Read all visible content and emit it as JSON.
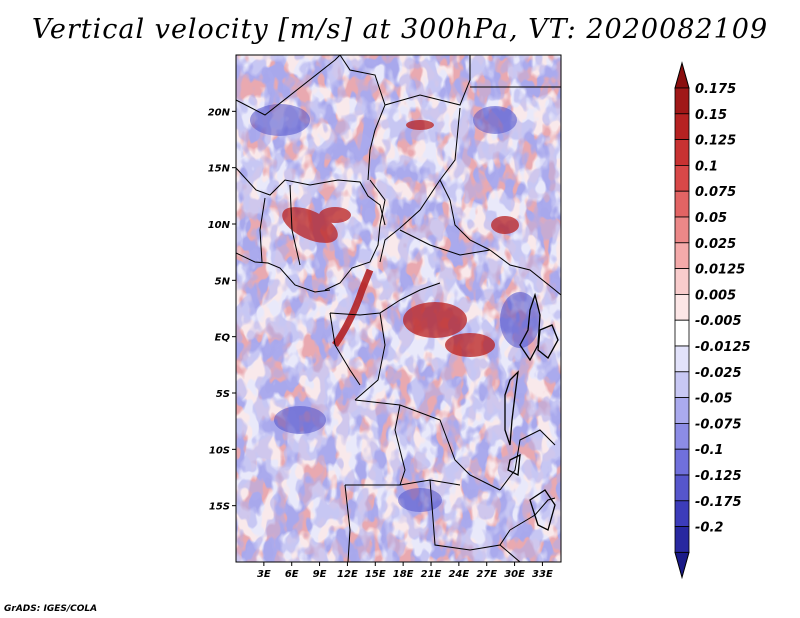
{
  "title": "Vertical velocity [m/s] at 300hPa, VT: 2020082109",
  "credit": "GrADS: IGES/COLA",
  "map": {
    "lon_range": [
      0,
      35
    ],
    "lat_range": [
      -20,
      25
    ],
    "lon_ticks": [
      {
        "value": 3,
        "label": "3E"
      },
      {
        "value": 6,
        "label": "6E"
      },
      {
        "value": 9,
        "label": "9E"
      },
      {
        "value": 12,
        "label": "12E"
      },
      {
        "value": 15,
        "label": "15E"
      },
      {
        "value": 18,
        "label": "18E"
      },
      {
        "value": 21,
        "label": "21E"
      },
      {
        "value": 24,
        "label": "24E"
      },
      {
        "value": 27,
        "label": "27E"
      },
      {
        "value": 30,
        "label": "30E"
      },
      {
        "value": 33,
        "label": "33E"
      }
    ],
    "lat_ticks": [
      {
        "value": 20,
        "label": "20N"
      },
      {
        "value": 15,
        "label": "15N"
      },
      {
        "value": 10,
        "label": "10N"
      },
      {
        "value": 5,
        "label": "5N"
      },
      {
        "value": 0,
        "label": "EQ"
      },
      {
        "value": -5,
        "label": "5S"
      },
      {
        "value": -10,
        "label": "10S"
      },
      {
        "value": -15,
        "label": "15S"
      }
    ]
  },
  "colorbar": {
    "items": [
      {
        "label": "0.175",
        "color": "#a01818"
      },
      {
        "label": "0.15",
        "color": "#b62222"
      },
      {
        "label": "0.125",
        "color": "#c83232"
      },
      {
        "label": "0.1",
        "color": "#d84848"
      },
      {
        "label": "0.075",
        "color": "#e26464"
      },
      {
        "label": "0.05",
        "color": "#ec8888"
      },
      {
        "label": "0.025",
        "color": "#f4aaaa"
      },
      {
        "label": "0.0125",
        "color": "#f8cccc"
      },
      {
        "label": "0.005",
        "color": "#fce6e6"
      },
      {
        "label": "-0.005",
        "color": "#ffffff"
      },
      {
        "label": "-0.0125",
        "color": "#e2e2fa"
      },
      {
        "label": "-0.025",
        "color": "#c8c8f4"
      },
      {
        "label": "-0.05",
        "color": "#aaaaee"
      },
      {
        "label": "-0.075",
        "color": "#8c8ce6"
      },
      {
        "label": "-0.1",
        "color": "#7070dc"
      },
      {
        "label": "-0.125",
        "color": "#5656cc"
      },
      {
        "label": "-0.175",
        "color": "#3c3cba"
      },
      {
        "label": "-0.2",
        "color": "#2828a0"
      }
    ],
    "top_arrow_color": "#8a0e0e",
    "bottom_arrow_color": "#1a1a88"
  }
}
